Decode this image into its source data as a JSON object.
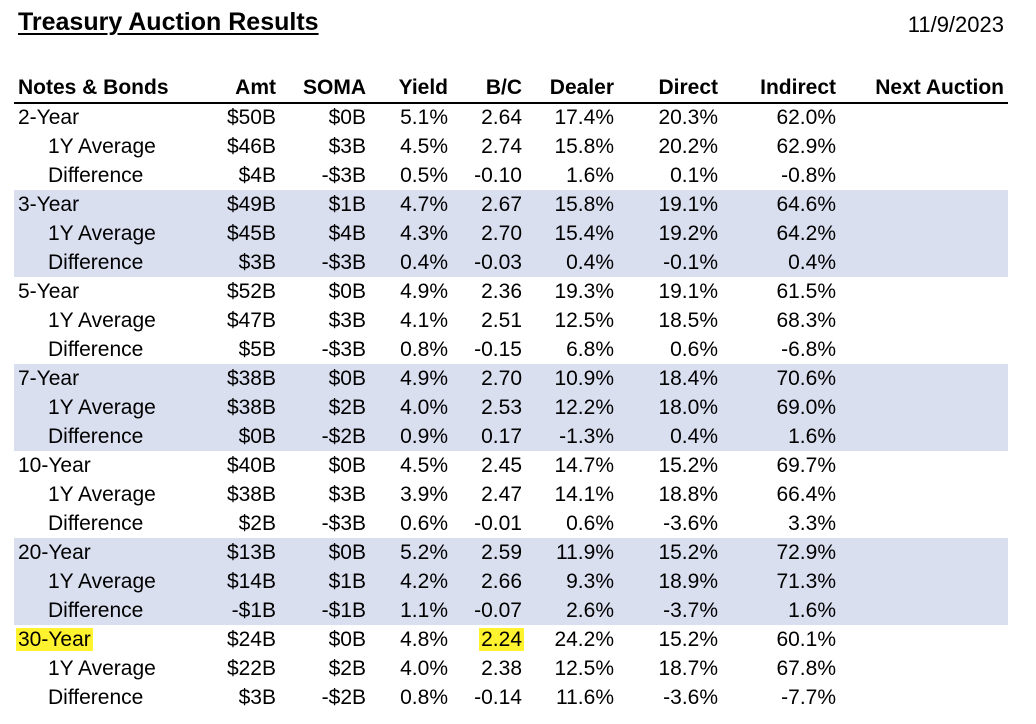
{
  "title": "Treasury Auction Results",
  "date": "11/9/2023",
  "colors": {
    "shaded_row": "#dadff0",
    "highlight": "#fff22e"
  },
  "columns": [
    "Notes & Bonds",
    "Amt",
    "SOMA",
    "Yield",
    "B/C",
    "Dealer",
    "Direct",
    "Indirect",
    "Next Auction"
  ],
  "rows": [
    {
      "label": "2-Year",
      "amt": "$50B",
      "soma": "$0B",
      "yield": "5.1%",
      "bc": "2.64",
      "dealer": "17.4%",
      "direct": "20.3%",
      "indirect": "62.0%",
      "next": ""
    },
    {
      "label": "1Y Average",
      "amt": "$46B",
      "soma": "$3B",
      "yield": "4.5%",
      "bc": "2.74",
      "dealer": "15.8%",
      "direct": "20.2%",
      "indirect": "62.9%",
      "next": ""
    },
    {
      "label": "Difference",
      "amt": "$4B",
      "soma": "-$3B",
      "yield": "0.5%",
      "bc": "-0.10",
      "dealer": "1.6%",
      "direct": "0.1%",
      "indirect": "-0.8%",
      "next": ""
    },
    {
      "label": "3-Year",
      "amt": "$49B",
      "soma": "$1B",
      "yield": "4.7%",
      "bc": "2.67",
      "dealer": "15.8%",
      "direct": "19.1%",
      "indirect": "64.6%",
      "next": ""
    },
    {
      "label": "1Y Average",
      "amt": "$45B",
      "soma": "$4B",
      "yield": "4.3%",
      "bc": "2.70",
      "dealer": "15.4%",
      "direct": "19.2%",
      "indirect": "64.2%",
      "next": ""
    },
    {
      "label": "Difference",
      "amt": "$3B",
      "soma": "-$3B",
      "yield": "0.4%",
      "bc": "-0.03",
      "dealer": "0.4%",
      "direct": "-0.1%",
      "indirect": "0.4%",
      "next": ""
    },
    {
      "label": "5-Year",
      "amt": "$52B",
      "soma": "$0B",
      "yield": "4.9%",
      "bc": "2.36",
      "dealer": "19.3%",
      "direct": "19.1%",
      "indirect": "61.5%",
      "next": ""
    },
    {
      "label": "1Y Average",
      "amt": "$47B",
      "soma": "$3B",
      "yield": "4.1%",
      "bc": "2.51",
      "dealer": "12.5%",
      "direct": "18.5%",
      "indirect": "68.3%",
      "next": ""
    },
    {
      "label": "Difference",
      "amt": "$5B",
      "soma": "-$3B",
      "yield": "0.8%",
      "bc": "-0.15",
      "dealer": "6.8%",
      "direct": "0.6%",
      "indirect": "-6.8%",
      "next": ""
    },
    {
      "label": "7-Year",
      "amt": "$38B",
      "soma": "$0B",
      "yield": "4.9%",
      "bc": "2.70",
      "dealer": "10.9%",
      "direct": "18.4%",
      "indirect": "70.6%",
      "next": ""
    },
    {
      "label": "1Y Average",
      "amt": "$38B",
      "soma": "$2B",
      "yield": "4.0%",
      "bc": "2.53",
      "dealer": "12.2%",
      "direct": "18.0%",
      "indirect": "69.0%",
      "next": ""
    },
    {
      "label": "Difference",
      "amt": "$0B",
      "soma": "-$2B",
      "yield": "0.9%",
      "bc": "0.17",
      "dealer": "-1.3%",
      "direct": "0.4%",
      "indirect": "1.6%",
      "next": ""
    },
    {
      "label": "10-Year",
      "amt": "$40B",
      "soma": "$0B",
      "yield": "4.5%",
      "bc": "2.45",
      "dealer": "14.7%",
      "direct": "15.2%",
      "indirect": "69.7%",
      "next": ""
    },
    {
      "label": "1Y Average",
      "amt": "$38B",
      "soma": "$3B",
      "yield": "3.9%",
      "bc": "2.47",
      "dealer": "14.1%",
      "direct": "18.8%",
      "indirect": "66.4%",
      "next": ""
    },
    {
      "label": "Difference",
      "amt": "$2B",
      "soma": "-$3B",
      "yield": "0.6%",
      "bc": "-0.01",
      "dealer": "0.6%",
      "direct": "-3.6%",
      "indirect": "3.3%",
      "next": ""
    },
    {
      "label": "20-Year",
      "amt": "$13B",
      "soma": "$0B",
      "yield": "5.2%",
      "bc": "2.59",
      "dealer": "11.9%",
      "direct": "15.2%",
      "indirect": "72.9%",
      "next": ""
    },
    {
      "label": "1Y Average",
      "amt": "$14B",
      "soma": "$1B",
      "yield": "4.2%",
      "bc": "2.66",
      "dealer": "9.3%",
      "direct": "18.9%",
      "indirect": "71.3%",
      "next": ""
    },
    {
      "label": "Difference",
      "amt": "-$1B",
      "soma": "-$1B",
      "yield": "1.1%",
      "bc": "-0.07",
      "dealer": "2.6%",
      "direct": "-3.7%",
      "indirect": "1.6%",
      "next": ""
    },
    {
      "label": "30-Year",
      "amt": "$24B",
      "soma": "$0B",
      "yield": "4.8%",
      "bc": "2.24",
      "dealer": "24.2%",
      "direct": "15.2%",
      "indirect": "60.1%",
      "next": ""
    },
    {
      "label": "1Y Average",
      "amt": "$22B",
      "soma": "$2B",
      "yield": "4.0%",
      "bc": "2.38",
      "dealer": "12.5%",
      "direct": "18.7%",
      "indirect": "67.8%",
      "next": ""
    },
    {
      "label": "Difference",
      "amt": "$3B",
      "soma": "-$2B",
      "yield": "0.8%",
      "bc": "-0.14",
      "dealer": "11.6%",
      "direct": "-3.6%",
      "indirect": "-7.7%",
      "next": ""
    }
  ]
}
